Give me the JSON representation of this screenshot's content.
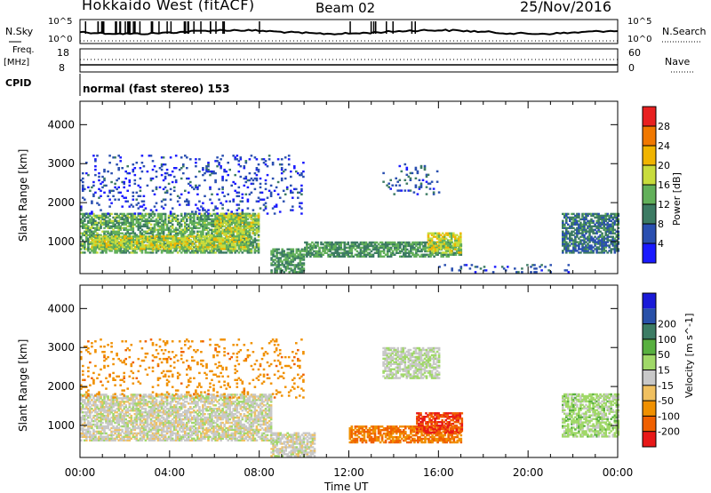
{
  "header": {
    "title": "Hokkaido West (fitACF)",
    "beam": "Beam 02",
    "date": "25/Nov/2016"
  },
  "panel_labels": {
    "nsky": "N.Sky",
    "nsearch": "N.Search",
    "freq": "Freq.",
    "mhz": "[MHz]",
    "nave": "Nave",
    "cpid": "CPID",
    "cpid_text": "normal (fast stereo) 153",
    "tick_1e5": "10^5",
    "tick_1e0": "10^0",
    "freq_top": "18",
    "freq_bottom": "8",
    "nave_top": "60",
    "nave_bottom": "0"
  },
  "colors": {
    "power": [
      "#1a1aff",
      "#2a4fb0",
      "#3c7b63",
      "#62b05a",
      "#c8dc3c",
      "#f0b400",
      "#f07800",
      "#e82020"
    ],
    "velocity": [
      "#e81818",
      "#f06000",
      "#f09000",
      "#f0c060",
      "#c8c8c8",
      "#a0d868",
      "#58b040",
      "#3c7c64",
      "#2850a8",
      "#1a1ad8"
    ]
  },
  "chart_data": [
    {
      "type": "heatmap",
      "name": "power",
      "xlabel": "Time UT",
      "ylabel": "Slant Range [km]",
      "x_ticks": [
        "00:00",
        "04:00",
        "08:00",
        "12:00",
        "16:00",
        "20:00",
        "00:00"
      ],
      "y_ticks": [
        1000,
        2000,
        3000,
        4000
      ],
      "xlim": [
        0,
        24
      ],
      "ylim": [
        180,
        4600
      ],
      "colorbar": {
        "label": "Power [dB]",
        "ticks": [
          4,
          8,
          12,
          16,
          20,
          24,
          28
        ],
        "range": [
          0,
          32
        ]
      },
      "regions": [
        {
          "t": [
            0,
            8
          ],
          "r": [
            700,
            1700
          ],
          "level": 13
        },
        {
          "t": [
            0.5,
            7.5
          ],
          "r": [
            800,
            1150
          ],
          "level": 18
        },
        {
          "t": [
            6,
            8
          ],
          "r": [
            1200,
            1700
          ],
          "level": 17
        },
        {
          "t": [
            8.5,
            10
          ],
          "r": [
            200,
            800
          ],
          "level": 12
        },
        {
          "t": [
            10,
            17
          ],
          "r": [
            600,
            1000
          ],
          "level": 12
        },
        {
          "t": [
            15.5,
            17
          ],
          "r": [
            700,
            1200
          ],
          "level": 18
        },
        {
          "t": [
            13.5,
            16
          ],
          "r": [
            2200,
            3000
          ],
          "level": 7
        },
        {
          "t": [
            16,
            22
          ],
          "r": [
            200,
            400
          ],
          "level": 6
        },
        {
          "t": [
            21.5,
            24
          ],
          "r": [
            700,
            1700
          ],
          "level": 9
        },
        {
          "t": [
            0,
            10
          ],
          "r": [
            1700,
            3200
          ],
          "level": 5
        }
      ]
    },
    {
      "type": "heatmap",
      "name": "velocity",
      "xlabel": "Time UT",
      "ylabel": "Slant Range [km]",
      "x_ticks": [
        "00:00",
        "04:00",
        "08:00",
        "12:00",
        "16:00",
        "20:00",
        "00:00"
      ],
      "y_ticks": [
        1000,
        2000,
        3000,
        4000
      ],
      "xlim": [
        0,
        24
      ],
      "ylim": [
        180,
        4600
      ],
      "colorbar": {
        "label": "Velocity [m s^-1]",
        "ticks": [
          -200,
          -100,
          -50,
          -15,
          15,
          50,
          100,
          200
        ]
      },
      "regions": [
        {
          "t": [
            0,
            8.5
          ],
          "r": [
            600,
            1800
          ],
          "velocity": 0
        },
        {
          "t": [
            8.5,
            10.5
          ],
          "r": [
            200,
            800
          ],
          "velocity": 0
        },
        {
          "t": [
            12,
            17
          ],
          "r": [
            550,
            1000
          ],
          "velocity": -100
        },
        {
          "t": [
            15,
            17
          ],
          "r": [
            800,
            1300
          ],
          "velocity": -150
        },
        {
          "t": [
            13.5,
            16
          ],
          "r": [
            2200,
            3000
          ],
          "velocity": 10
        },
        {
          "t": [
            21.5,
            24
          ],
          "r": [
            700,
            1800
          ],
          "velocity": 30
        },
        {
          "t": [
            0,
            10
          ],
          "r": [
            1700,
            3200
          ],
          "velocity": -80
        }
      ]
    }
  ]
}
